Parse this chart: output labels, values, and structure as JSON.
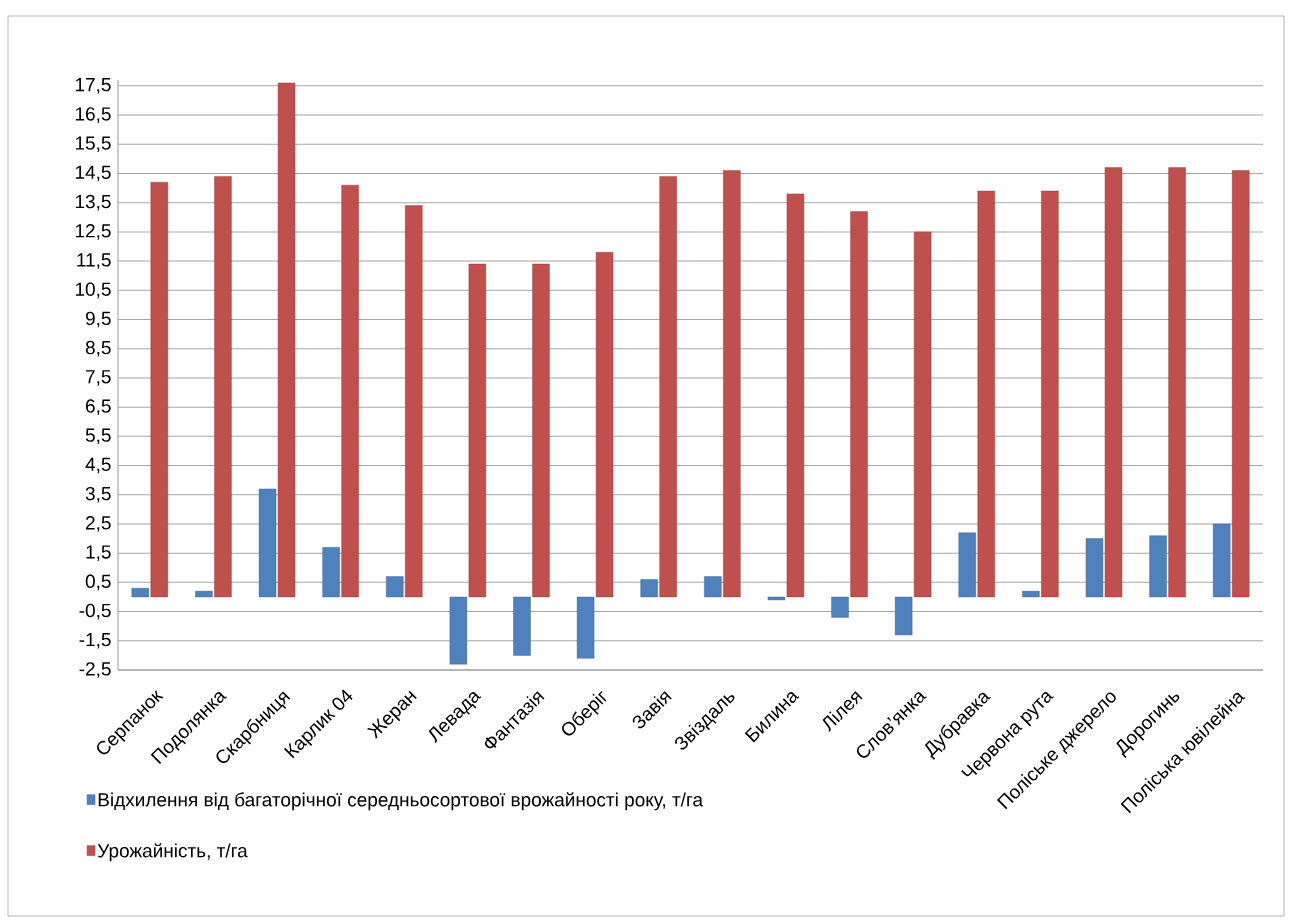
{
  "chart_data": {
    "type": "bar",
    "categories": [
      "Серпанок",
      "Подолянка",
      "Скарбниця",
      "Карлик 04",
      "Жеран",
      "Левада",
      "Фантазія",
      "Оберіг",
      "Завія",
      "Звіздаль",
      "Билина",
      "Лілея",
      "Слов’янка",
      "Дубравка",
      "Червона рута",
      "Поліське джерело",
      "Дорогинь",
      "Поліська ювілейна"
    ],
    "series": [
      {
        "name": "Відхилення від багаторічної середньосортової врожайності року, т/га",
        "color": "#4f81bd",
        "values": [
          0.3,
          0.2,
          3.7,
          1.7,
          0.7,
          -2.3,
          -2.0,
          -2.1,
          0.6,
          0.7,
          -0.1,
          -0.7,
          -1.3,
          2.2,
          0.2,
          2.0,
          2.1,
          2.5
        ]
      },
      {
        "name": "Урожайність, т/га",
        "color": "#c0504d",
        "values": [
          14.2,
          14.4,
          17.6,
          14.1,
          13.4,
          11.4,
          11.4,
          11.8,
          14.4,
          14.6,
          13.8,
          13.2,
          12.5,
          13.9,
          13.9,
          14.7,
          14.7,
          14.6
        ]
      }
    ],
    "ylim": [
      -2.5,
      17.7
    ],
    "yticks": [
      {
        "value": -2.5,
        "label": "-2,5"
      },
      {
        "value": -1.5,
        "label": "-1,5"
      },
      {
        "value": -0.5,
        "label": "-0,5"
      },
      {
        "value": 0.5,
        "label": "0,5"
      },
      {
        "value": 1.5,
        "label": "1,5"
      },
      {
        "value": 2.5,
        "label": "2,5"
      },
      {
        "value": 3.5,
        "label": "3,5"
      },
      {
        "value": 4.5,
        "label": "4,5"
      },
      {
        "value": 5.5,
        "label": "5,5"
      },
      {
        "value": 6.5,
        "label": "6,5"
      },
      {
        "value": 7.5,
        "label": "7,5"
      },
      {
        "value": 8.5,
        "label": "8,5"
      },
      {
        "value": 9.5,
        "label": "9,5"
      },
      {
        "value": 10.5,
        "label": "10,5"
      },
      {
        "value": 11.5,
        "label": "11,5"
      },
      {
        "value": 12.5,
        "label": "12,5"
      },
      {
        "value": 13.5,
        "label": "13,5"
      },
      {
        "value": 14.5,
        "label": "14,5"
      },
      {
        "value": 15.5,
        "label": "15,5"
      },
      {
        "value": 16.5,
        "label": "16,5"
      },
      {
        "value": 17.5,
        "label": "17,5"
      }
    ],
    "grid": "y",
    "legend": "bottom"
  }
}
